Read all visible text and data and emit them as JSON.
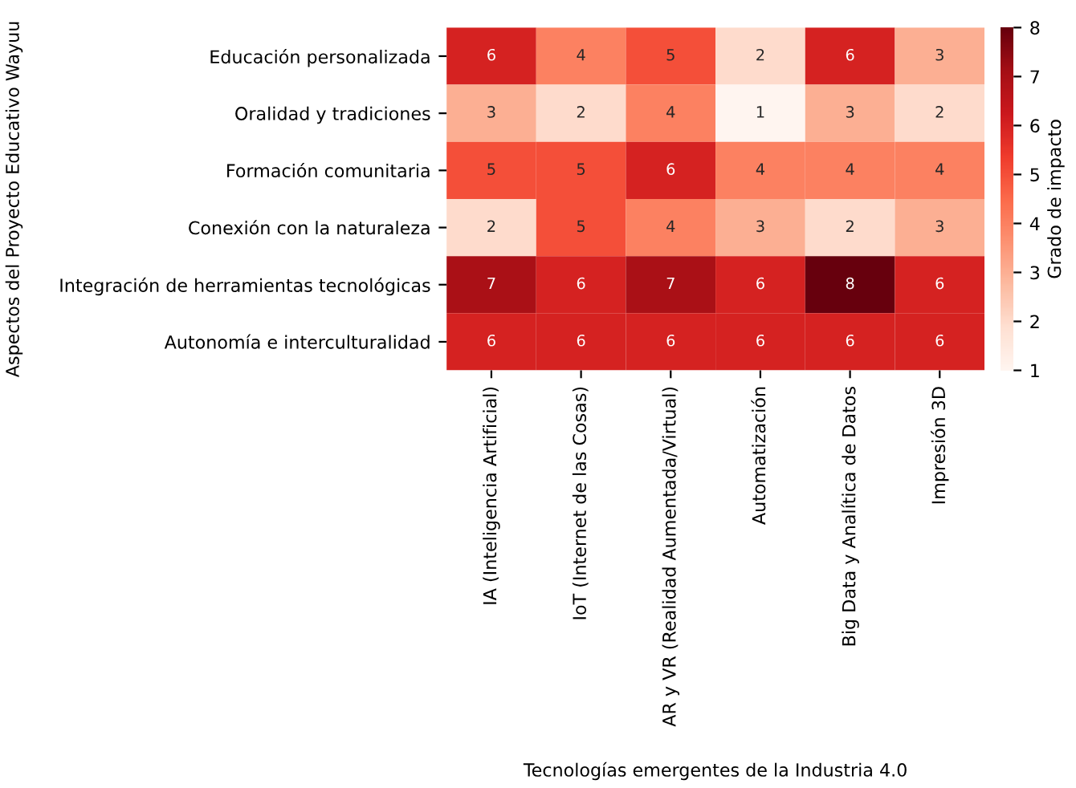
{
  "chart_data": {
    "type": "heatmap",
    "xlabel": "Tecnologías emergentes de la Industria 4.0",
    "ylabel": "Aspectos del Proyecto Educativo Wayuu",
    "clabel": "Grado de impacto",
    "categories": [
      "IA (Inteligencia Artificial)",
      "IoT (Internet de las Cosas)",
      "AR y VR (Realidad Aumentada/Virtual)",
      "Automatización",
      "Big Data y Analítica de Datos",
      "Impresión 3D"
    ],
    "y_categories": [
      "Educación personalizada",
      "Oralidad y tradiciones",
      "Formación comunitaria",
      "Conexión con la naturaleza",
      "Integración de herramientas tecnológicas",
      "Autonomía e interculturalidad"
    ],
    "cells": [
      [
        6,
        4,
        5,
        2,
        6,
        3
      ],
      [
        3,
        2,
        4,
        1,
        3,
        2
      ],
      [
        5,
        5,
        6,
        4,
        4,
        4
      ],
      [
        2,
        5,
        4,
        3,
        2,
        3
      ],
      [
        7,
        6,
        7,
        6,
        8,
        6
      ],
      [
        6,
        6,
        6,
        6,
        6,
        6
      ]
    ],
    "clim": [
      1,
      8
    ],
    "cticks": [
      1,
      2,
      3,
      4,
      5,
      6,
      7,
      8
    ],
    "data_labels": true
  }
}
